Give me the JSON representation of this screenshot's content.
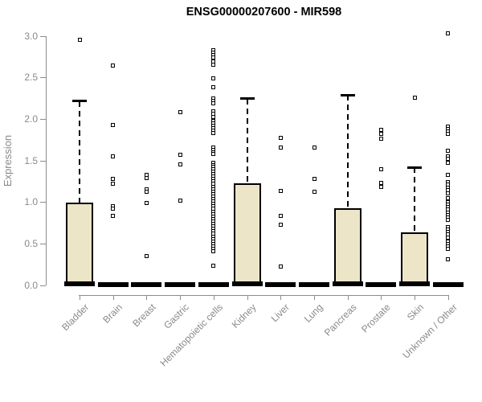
{
  "colors": {
    "axis": "#8c8c8c",
    "axis_text": "#8a8a8a",
    "box_fill": "#ece5c8",
    "box_border": "#000000",
    "title_text": "#000000"
  },
  "chart_data": {
    "type": "boxplot",
    "title": "ENSG00000207600 - MIR598",
    "xlabel": "",
    "ylabel": "Expression",
    "ylim": [
      0.0,
      3.0
    ],
    "grid": false,
    "legend": "none",
    "ytick_labels": [
      "0.0",
      "0.5",
      "1.0",
      "1.5",
      "2.0",
      "2.5",
      "3.0"
    ],
    "ytick_values": [
      0.0,
      0.5,
      1.0,
      1.5,
      2.0,
      2.5,
      3.0
    ],
    "categories": [
      "Bladder",
      "Brain",
      "Breast",
      "Gastric",
      "Hematopoietic cells",
      "Kidney",
      "Liver",
      "Lung",
      "Pancreas",
      "Prostate",
      "Skin",
      "Unknown / Other"
    ],
    "series": [
      {
        "name": "Bladder",
        "q1": 0.0,
        "median": 0.02,
        "q3": 1.0,
        "whisker_low": 0.0,
        "whisker_high": 2.22,
        "outliers": [
          2.96
        ]
      },
      {
        "name": "Brain",
        "q1": 0.0,
        "median": 0.01,
        "q3": 0.02,
        "whisker_low": 0.0,
        "whisker_high": 0.02,
        "outliers": [
          2.65,
          1.93,
          1.55,
          1.28,
          1.22,
          0.95,
          0.92,
          0.84
        ]
      },
      {
        "name": "Breast",
        "q1": 0.0,
        "median": 0.01,
        "q3": 0.02,
        "whisker_low": 0.0,
        "whisker_high": 0.02,
        "outliers": [
          1.33,
          1.29,
          1.16,
          1.13,
          0.99,
          0.35
        ]
      },
      {
        "name": "Gastric",
        "q1": 0.0,
        "median": 0.01,
        "q3": 0.02,
        "whisker_low": 0.0,
        "whisker_high": 0.02,
        "outliers": [
          2.09,
          1.57,
          1.46,
          1.02
        ]
      },
      {
        "name": "Hematopoietic cells",
        "q1": 0.0,
        "median": 0.01,
        "q3": 0.02,
        "whisker_low": 0.0,
        "whisker_high": 0.02,
        "outliers": [
          2.83,
          2.8,
          2.77,
          2.74,
          2.7,
          2.66,
          2.49,
          2.39,
          2.25,
          2.22,
          2.19,
          2.1,
          2.07,
          2.03,
          1.98,
          1.95,
          1.92,
          1.89,
          1.86,
          1.83,
          1.66,
          1.63,
          1.6,
          1.58,
          1.48,
          1.45,
          1.43,
          1.4,
          1.37,
          1.34,
          1.31,
          1.28,
          1.25,
          1.22,
          1.19,
          1.16,
          1.13,
          1.1,
          1.07,
          1.04,
          1.01,
          0.98,
          0.95,
          0.92,
          0.89,
          0.86,
          0.83,
          0.8,
          0.77,
          0.74,
          0.71,
          0.68,
          0.65,
          0.62,
          0.59,
          0.56,
          0.53,
          0.5,
          0.47,
          0.44,
          0.41,
          0.24
        ]
      },
      {
        "name": "Kidney",
        "q1": 0.0,
        "median": 0.02,
        "q3": 1.23,
        "whisker_low": 0.0,
        "whisker_high": 2.25,
        "outliers": []
      },
      {
        "name": "Liver",
        "q1": 0.0,
        "median": 0.01,
        "q3": 0.02,
        "whisker_low": 0.0,
        "whisker_high": 0.02,
        "outliers": [
          1.78,
          1.66,
          1.14,
          0.84,
          0.73,
          0.23
        ]
      },
      {
        "name": "Lung",
        "q1": 0.0,
        "median": 0.01,
        "q3": 0.02,
        "whisker_low": 0.0,
        "whisker_high": 0.02,
        "outliers": [
          1.66,
          1.28,
          1.13
        ]
      },
      {
        "name": "Pancreas",
        "q1": 0.0,
        "median": 0.02,
        "q3": 0.93,
        "whisker_low": 0.0,
        "whisker_high": 2.29,
        "outliers": []
      },
      {
        "name": "Prostate",
        "q1": 0.0,
        "median": 0.01,
        "q3": 0.02,
        "whisker_low": 0.0,
        "whisker_high": 0.02,
        "outliers": [
          1.87,
          1.82,
          1.77,
          1.4,
          1.23,
          1.19
        ]
      },
      {
        "name": "Skin",
        "q1": 0.0,
        "median": 0.02,
        "q3": 0.64,
        "whisker_low": 0.0,
        "whisker_high": 1.42,
        "outliers": [
          2.26
        ]
      },
      {
        "name": "Unknown / Other",
        "q1": 0.0,
        "median": 0.01,
        "q3": 0.02,
        "whisker_low": 0.0,
        "whisker_high": 0.02,
        "outliers": [
          3.03,
          1.91,
          1.88,
          1.85,
          1.82,
          1.62,
          1.55,
          1.52,
          1.48,
          1.33,
          1.24,
          1.21,
          1.18,
          1.15,
          1.11,
          1.05,
          1.0,
          0.97,
          0.94,
          0.91,
          0.88,
          0.85,
          0.82,
          0.79,
          0.7,
          0.67,
          0.64,
          0.61,
          0.58,
          0.53,
          0.5,
          0.47,
          0.44,
          0.31
        ]
      }
    ]
  }
}
